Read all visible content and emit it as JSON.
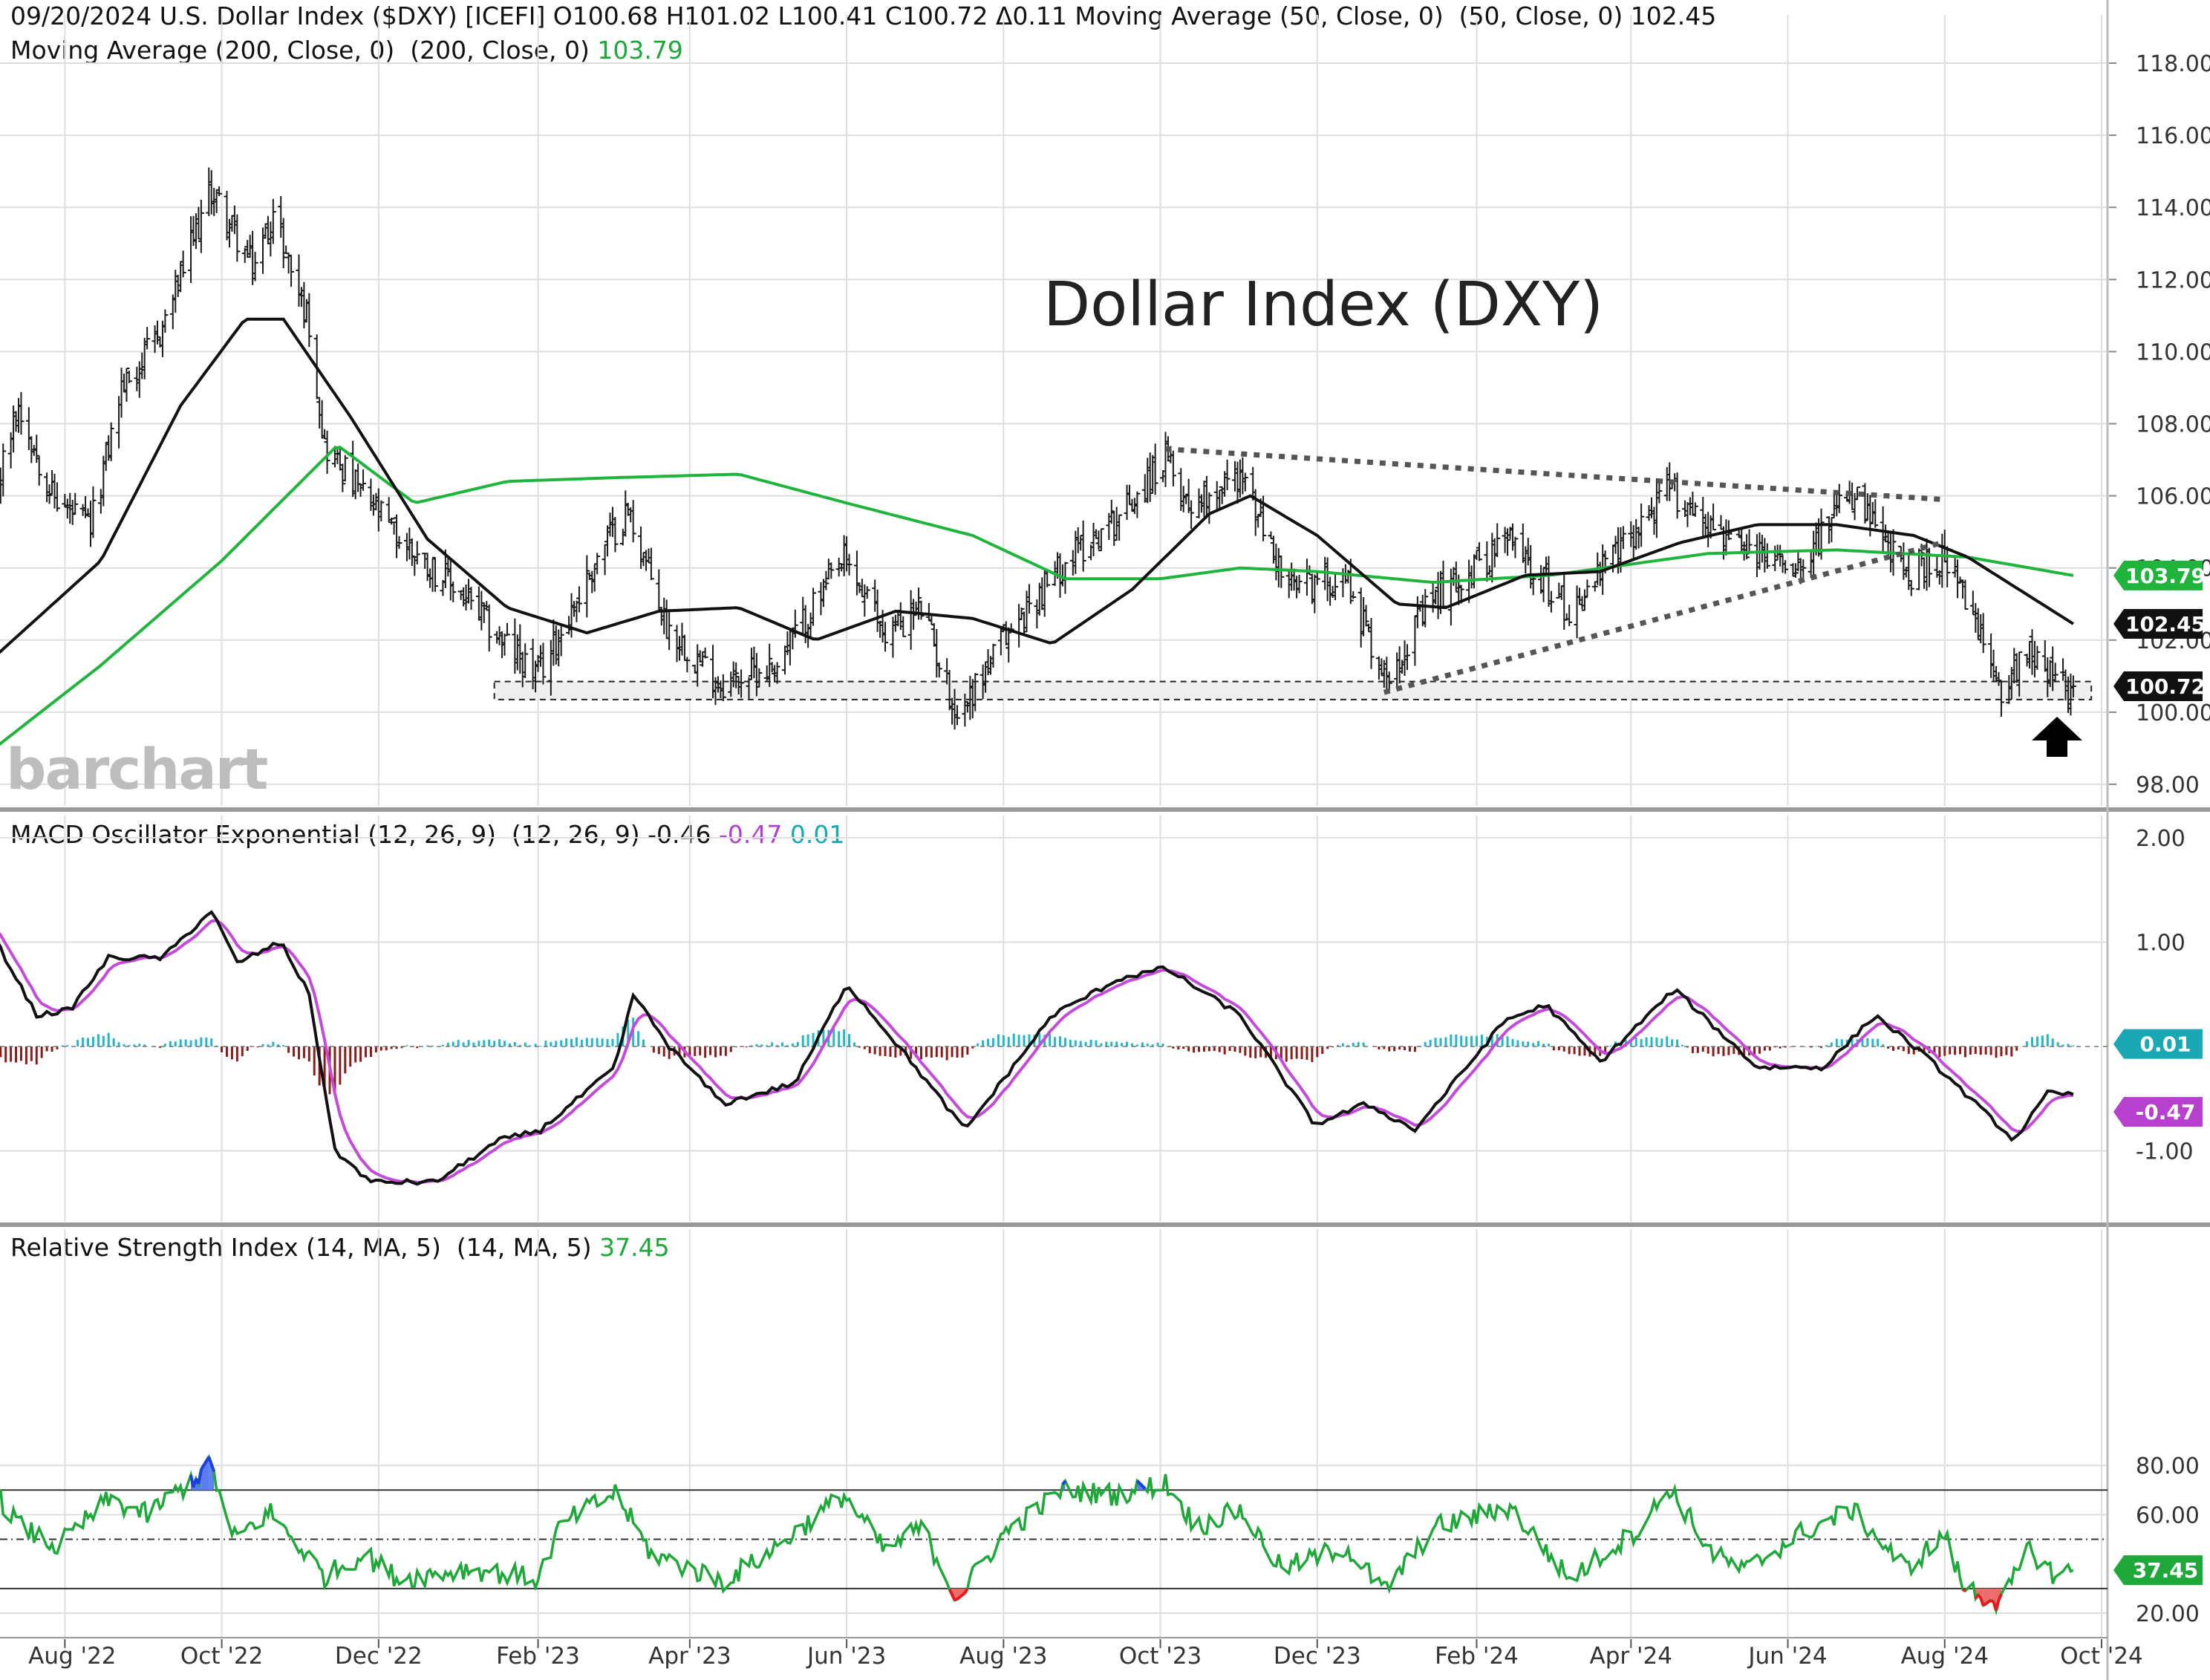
{
  "header": {
    "line1": "09/20/2024 U.S. Dollar Index ($DXY) [ICEFI] O100.68 H101.02 L100.41 C100.72 Δ0.11 Moving Average (50, Close, 0)  (50, Close, 0) 102.45",
    "line2_label": "Moving Average (200, Close, 0)  (200, Close, 0) ",
    "line2_value": "103.79"
  },
  "macd_header": {
    "label": "MACD Oscillator Exponential (12, 26, 9)  (12, 26, 9) -0.46 ",
    "signal_value": "-0.47",
    "hist_value": "0.01"
  },
  "rsi_header": {
    "label": "Relative Strength Index (14, MA, 5)  (14, MA, 5) ",
    "value": "37.45"
  },
  "watermark": "barchart",
  "colors": {
    "ma50": "#111111",
    "ma200": "#1fb53d",
    "macd_line": "#111111",
    "signal_line": "#c44ad9",
    "hist_pos": "#22b8c4",
    "hist_neg": "#8a1c1c",
    "rsi_line": "#1fa83a",
    "rsi_overbought": "#1c3fe0",
    "rsi_oversold": "#e01c1c",
    "grid": "#dedede"
  },
  "chart_data": [
    {
      "type": "ohlc",
      "title": "Dollar Index (DXY)",
      "x_ticks": [
        "Aug '22",
        "Oct '22",
        "Dec '22",
        "Feb '23",
        "Apr '23",
        "Jun '23",
        "Aug '23",
        "Oct '23",
        "Dec '23",
        "Feb '24",
        "Apr '24",
        "Jun '24",
        "Aug '24",
        "Oct '24"
      ],
      "x_range": [
        "2022-07-01",
        "2024-10-01"
      ],
      "ylim": [
        97,
        119
      ],
      "y_ticks": [
        "98.00",
        "100.00",
        "102.00",
        "104.00",
        "106.00",
        "108.00",
        "110.00",
        "112.00",
        "114.00",
        "116.00",
        "118.00"
      ],
      "close_anchors": [
        [
          "2022-07-01",
          105.1
        ],
        [
          "2022-07-14",
          108.5
        ],
        [
          "2022-07-28",
          105.9
        ],
        [
          "2022-08-11",
          105.1
        ],
        [
          "2022-08-23",
          109.0
        ],
        [
          "2022-09-06",
          110.3
        ],
        [
          "2022-09-27",
          114.5
        ],
        [
          "2022-10-13",
          112.3
        ],
        [
          "2022-10-21",
          113.8
        ],
        [
          "2022-11-04",
          110.8
        ],
        [
          "2022-11-10",
          107.4
        ],
        [
          "2022-11-25",
          106.0
        ],
        [
          "2022-12-09",
          104.8
        ],
        [
          "2022-12-30",
          103.5
        ],
        [
          "2023-01-18",
          102.0
        ],
        [
          "2023-02-01",
          101.0
        ],
        [
          "2023-02-28",
          104.8
        ],
        [
          "2023-03-08",
          105.6
        ],
        [
          "2023-03-23",
          102.4
        ],
        [
          "2023-04-13",
          100.8
        ],
        [
          "2023-05-04",
          101.3
        ],
        [
          "2023-05-31",
          104.2
        ],
        [
          "2023-06-16",
          102.2
        ],
        [
          "2023-06-30",
          102.9
        ],
        [
          "2023-07-14",
          99.9
        ],
        [
          "2023-08-01",
          102.0
        ],
        [
          "2023-08-25",
          104.2
        ],
        [
          "2023-09-14",
          105.4
        ],
        [
          "2023-10-03",
          107.0
        ],
        [
          "2023-10-12",
          105.8
        ],
        [
          "2023-11-01",
          106.6
        ],
        [
          "2023-11-20",
          103.4
        ],
        [
          "2023-12-12",
          103.8
        ],
        [
          "2023-12-27",
          101.0
        ],
        [
          "2024-01-16",
          103.2
        ],
        [
          "2024-02-14",
          104.8
        ],
        [
          "2024-03-08",
          102.8
        ],
        [
          "2024-04-16",
          106.2
        ],
        [
          "2024-05-15",
          104.4
        ],
        [
          "2024-06-05",
          104.2
        ],
        [
          "2024-06-26",
          106.0
        ],
        [
          "2024-07-17",
          103.8
        ],
        [
          "2024-08-01",
          104.3
        ],
        [
          "2024-08-23",
          100.7
        ],
        [
          "2024-09-03",
          101.8
        ],
        [
          "2024-09-17",
          100.6
        ],
        [
          "2024-09-20",
          100.72
        ]
      ],
      "last_bar": {
        "date": "2024-09-20",
        "open": 100.68,
        "high": 101.02,
        "low": 100.41,
        "close": 100.72
      },
      "ma50": [
        [
          "2022-07-01",
          101.3
        ],
        [
          "2022-08-15",
          104.2
        ],
        [
          "2022-09-15",
          108.5
        ],
        [
          "2022-10-10",
          110.9
        ],
        [
          "2022-10-25",
          110.9
        ],
        [
          "2022-11-20",
          108.2
        ],
        [
          "2022-12-20",
          104.8
        ],
        [
          "2023-01-20",
          102.9
        ],
        [
          "2023-02-20",
          102.2
        ],
        [
          "2023-03-20",
          102.8
        ],
        [
          "2023-04-20",
          102.9
        ],
        [
          "2023-05-20",
          102.0
        ],
        [
          "2023-06-20",
          102.8
        ],
        [
          "2023-07-20",
          102.6
        ],
        [
          "2023-08-20",
          101.9
        ],
        [
          "2023-09-20",
          103.4
        ],
        [
          "2023-10-20",
          105.5
        ],
        [
          "2023-11-05",
          106.0
        ],
        [
          "2023-12-01",
          104.9
        ],
        [
          "2024-01-01",
          103.0
        ],
        [
          "2024-01-20",
          102.9
        ],
        [
          "2024-02-20",
          103.8
        ],
        [
          "2024-03-20",
          103.9
        ],
        [
          "2024-04-20",
          104.7
        ],
        [
          "2024-05-20",
          105.2
        ],
        [
          "2024-06-20",
          105.2
        ],
        [
          "2024-07-20",
          104.9
        ],
        [
          "2024-08-10",
          104.3
        ],
        [
          "2024-09-20",
          102.45
        ]
      ],
      "ma200": [
        [
          "2022-07-01",
          98.8
        ],
        [
          "2022-08-15",
          101.3
        ],
        [
          "2022-10-01",
          104.2
        ],
        [
          "2022-11-15",
          107.4
        ],
        [
          "2022-12-15",
          105.8
        ],
        [
          "2023-01-20",
          106.4
        ],
        [
          "2023-03-01",
          106.5
        ],
        [
          "2023-04-20",
          106.6
        ],
        [
          "2023-06-01",
          105.8
        ],
        [
          "2023-07-20",
          104.9
        ],
        [
          "2023-08-25",
          103.7
        ],
        [
          "2023-10-01",
          103.7
        ],
        [
          "2023-11-01",
          104.0
        ],
        [
          "2023-12-01",
          103.9
        ],
        [
          "2024-01-15",
          103.6
        ],
        [
          "2024-03-01",
          103.8
        ],
        [
          "2024-05-01",
          104.4
        ],
        [
          "2024-06-20",
          104.5
        ],
        [
          "2024-08-10",
          104.3
        ],
        [
          "2024-09-20",
          103.79
        ]
      ],
      "support_band": {
        "upper": 100.85,
        "lower": 100.35,
        "from": "2023-01-15",
        "to": "2024-09-27"
      },
      "triangle_upper": [
        [
          "2023-10-03",
          107.3
        ],
        [
          "2024-07-31",
          105.9
        ]
      ],
      "triangle_lower": [
        [
          "2023-12-27",
          100.55
        ],
        [
          "2024-07-31",
          104.7
        ]
      ],
      "labels": {
        "close": "100.72",
        "ma50": "102.45",
        "ma200": "103.79"
      }
    },
    {
      "type": "macd",
      "ylim": [
        -1.6,
        2.25
      ],
      "y_ticks": [
        "2.00",
        "1.00",
        "-1.00"
      ],
      "macd_anchors": [
        [
          "2022-07-01",
          1.2
        ],
        [
          "2022-07-21",
          0.3
        ],
        [
          "2022-08-03",
          0.35
        ],
        [
          "2022-08-18",
          0.85
        ],
        [
          "2022-09-08",
          0.85
        ],
        [
          "2022-09-27",
          1.3
        ],
        [
          "2022-10-07",
          0.8
        ],
        [
          "2022-10-24",
          1.0
        ],
        [
          "2022-11-04",
          0.5
        ],
        [
          "2022-11-14",
          -1.0
        ],
        [
          "2022-11-28",
          -1.3
        ],
        [
          "2022-12-23",
          -1.3
        ],
        [
          "2023-01-17",
          -0.9
        ],
        [
          "2023-02-02",
          -0.8
        ],
        [
          "2023-03-03",
          -0.2
        ],
        [
          "2023-03-10",
          0.5
        ],
        [
          "2023-03-24",
          0.0
        ],
        [
          "2023-04-14",
          -0.55
        ],
        [
          "2023-05-12",
          -0.35
        ],
        [
          "2023-06-01",
          0.6
        ],
        [
          "2023-06-23",
          -0.05
        ],
        [
          "2023-07-17",
          -0.8
        ],
        [
          "2023-08-20",
          0.3
        ],
        [
          "2023-09-15",
          0.65
        ],
        [
          "2023-10-03",
          0.75
        ],
        [
          "2023-11-01",
          0.3
        ],
        [
          "2023-11-30",
          -0.75
        ],
        [
          "2023-12-20",
          -0.55
        ],
        [
          "2024-01-08",
          -0.8
        ],
        [
          "2024-02-12",
          0.25
        ],
        [
          "2024-02-28",
          0.4
        ],
        [
          "2024-03-20",
          -0.15
        ],
        [
          "2024-04-18",
          0.55
        ],
        [
          "2024-05-20",
          -0.2
        ],
        [
          "2024-06-15",
          -0.2
        ],
        [
          "2024-07-05",
          0.3
        ],
        [
          "2024-07-25",
          -0.1
        ],
        [
          "2024-08-28",
          -0.9
        ],
        [
          "2024-09-10",
          -0.45
        ],
        [
          "2024-09-20",
          -0.46
        ]
      ],
      "signal_value": -0.47,
      "histogram_value": 0.01,
      "labels": {
        "histogram": "0.01",
        "signal": "-0.47"
      }
    },
    {
      "type": "rsi",
      "ylim": [
        18,
        88
      ],
      "y_ticks": [
        "80.00",
        "60.00",
        "20.00"
      ],
      "levels": [
        70,
        50,
        30
      ],
      "rsi_anchors": [
        [
          "2022-07-01",
          74
        ],
        [
          "2022-07-15",
          55
        ],
        [
          "2022-07-29",
          47
        ],
        [
          "2022-08-18",
          66
        ],
        [
          "2022-09-02",
          60
        ],
        [
          "2022-09-27",
          80
        ],
        [
          "2022-10-05",
          50
        ],
        [
          "2022-10-20",
          61
        ],
        [
          "2022-11-10",
          35
        ],
        [
          "2022-11-25",
          44
        ],
        [
          "2022-12-09",
          34
        ],
        [
          "2023-01-05",
          38
        ],
        [
          "2023-02-01",
          34
        ],
        [
          "2023-02-10",
          56
        ],
        [
          "2023-03-03",
          69
        ],
        [
          "2023-03-17",
          44
        ],
        [
          "2023-04-14",
          33
        ],
        [
          "2023-05-01",
          44
        ],
        [
          "2023-05-31",
          68
        ],
        [
          "2023-06-16",
          45
        ],
        [
          "2023-06-30",
          55
        ],
        [
          "2023-07-14",
          26
        ],
        [
          "2023-08-01",
          52
        ],
        [
          "2023-08-24",
          70
        ],
        [
          "2023-09-14",
          68
        ],
        [
          "2023-10-03",
          73
        ],
        [
          "2023-10-15",
          55
        ],
        [
          "2023-11-01",
          62
        ],
        [
          "2023-11-17",
          38
        ],
        [
          "2023-12-12",
          47
        ],
        [
          "2023-12-27",
          29
        ],
        [
          "2024-01-16",
          55
        ],
        [
          "2024-02-14",
          63
        ],
        [
          "2024-03-08",
          34
        ],
        [
          "2024-04-05",
          55
        ],
        [
          "2024-04-16",
          71
        ],
        [
          "2024-05-03",
          44
        ],
        [
          "2024-05-15",
          37
        ],
        [
          "2024-06-05",
          52
        ],
        [
          "2024-06-26",
          62
        ],
        [
          "2024-07-17",
          38
        ],
        [
          "2024-08-01",
          52
        ],
        [
          "2024-08-08",
          31
        ],
        [
          "2024-08-23",
          24
        ],
        [
          "2024-09-03",
          46
        ],
        [
          "2024-09-12",
          36
        ],
        [
          "2024-09-20",
          37.45
        ]
      ],
      "labels": {
        "rsi": "37.45"
      }
    }
  ],
  "arrow": "up-arrow-icon"
}
